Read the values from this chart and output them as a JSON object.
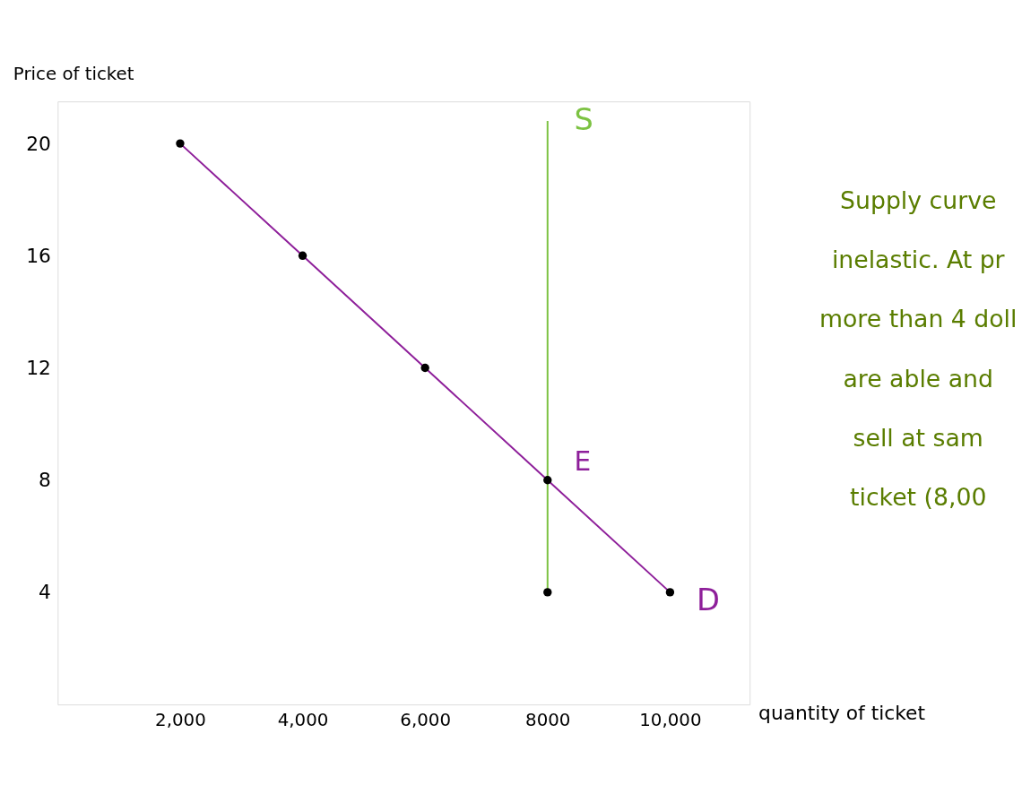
{
  "chart_data": {
    "type": "line",
    "xlabel": "quantity of ticket",
    "ylabel": "Price of ticket",
    "xlim": [
      0,
      11300
    ],
    "ylim": [
      0,
      21.5
    ],
    "xticks": [
      {
        "value": 2000,
        "label": "2,000"
      },
      {
        "value": 4000,
        "label": "4,000"
      },
      {
        "value": 6000,
        "label": "6,000"
      },
      {
        "value": 8000,
        "label": "8000"
      },
      {
        "value": 10000,
        "label": "10,000"
      }
    ],
    "yticks": [
      4,
      8,
      12,
      16,
      20
    ],
    "series": [
      {
        "name": "D",
        "color": "#8e1f9a",
        "x": [
          2000,
          4000,
          6000,
          8000,
          10000
        ],
        "values": [
          20,
          16,
          12,
          8,
          4
        ]
      },
      {
        "name": "S",
        "color": "#7cc242",
        "x": [
          8000,
          8000
        ],
        "values": [
          4,
          20.8
        ]
      },
      {
        "color": "#000000",
        "type": "scatter",
        "marker": "circle",
        "x": [
          2000,
          4000,
          6000,
          8000,
          10000,
          8000
        ],
        "values": [
          20,
          16,
          12,
          8,
          4,
          4
        ]
      }
    ],
    "annotations": [
      {
        "text": "E",
        "x": 8000,
        "y": 8
      },
      "Supply curve\ninelastic. At pr\nmore than 4 doll\nare able and\nsell at sam\nticket (8,00"
    ],
    "grid": false,
    "legend": false
  }
}
